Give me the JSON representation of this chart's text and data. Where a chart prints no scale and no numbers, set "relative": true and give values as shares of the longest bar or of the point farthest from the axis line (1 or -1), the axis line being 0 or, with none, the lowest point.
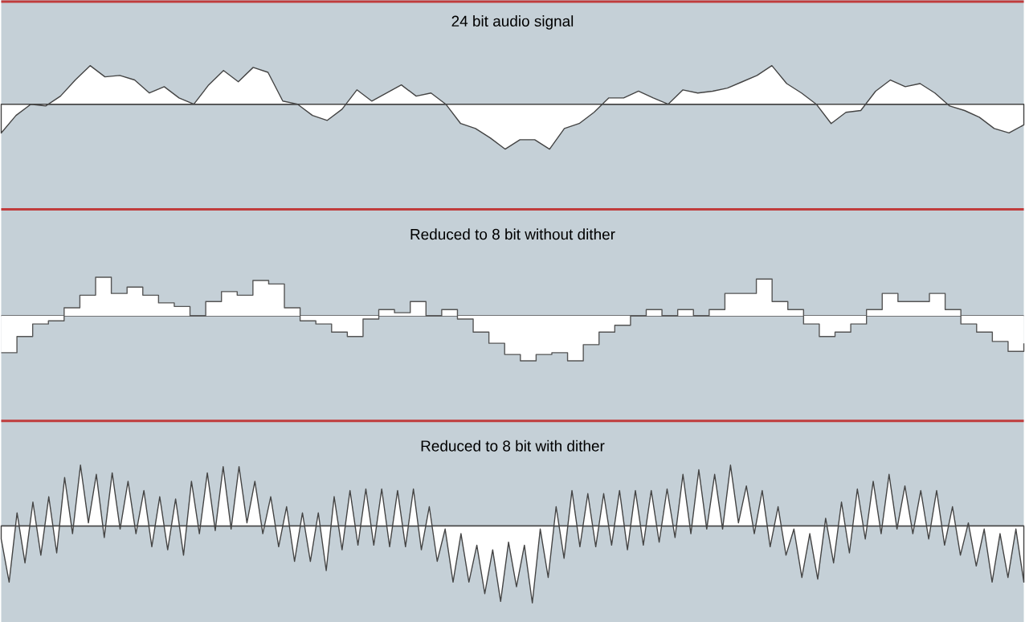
{
  "chart_data": [
    {
      "type": "area",
      "title": "24 bit audio signal",
      "relative": true,
      "color": "#ffffff",
      "categories": [
        null,
        null,
        null,
        null,
        null,
        null,
        null,
        null,
        null,
        null,
        null,
        null,
        null,
        null,
        null,
        null,
        null,
        null,
        null,
        null,
        null,
        null,
        null,
        null,
        null,
        null,
        null,
        null,
        null,
        null,
        null,
        null,
        null,
        null,
        null,
        null,
        null,
        null,
        null,
        null,
        null,
        null,
        null,
        null,
        null,
        null,
        null,
        null,
        null,
        null,
        null,
        null,
        null,
        null,
        null,
        null,
        null,
        null,
        null,
        null,
        null,
        null,
        null,
        null,
        null,
        null,
        null,
        null,
        null,
        null
      ],
      "values": [
        -0.64,
        -0.25,
        0,
        -0.04,
        0.18,
        0.54,
        0.86,
        0.61,
        0.64,
        0.54,
        0.25,
        0.39,
        0.14,
        0,
        0.43,
        0.75,
        0.5,
        0.82,
        0.71,
        0.07,
        0,
        -0.25,
        -0.36,
        -0.11,
        0.32,
        0.07,
        0.25,
        0.43,
        0.18,
        0.25,
        0,
        -0.43,
        -0.54,
        -0.75,
        -1,
        -0.79,
        -0.79,
        -1,
        -0.54,
        -0.43,
        -0.18,
        0.14,
        0.14,
        0.29,
        0.14,
        0,
        0.32,
        0.25,
        0.29,
        0.36,
        0.5,
        0.64,
        0.86,
        0.46,
        0.25,
        0,
        -0.43,
        -0.18,
        -0.14,
        0.29,
        0.54,
        0.39,
        0.46,
        0.25,
        -0.04,
        -0.14,
        -0.29,
        -0.54,
        -0.64,
        -0.46
      ]
    },
    {
      "type": "step",
      "title": "Reduced to 8 bit without dither",
      "relative": true,
      "color": "#555555",
      "categories": [
        null,
        null,
        null,
        null,
        null,
        null,
        null,
        null,
        null,
        null,
        null,
        null,
        null,
        null,
        null,
        null,
        null,
        null,
        null,
        null,
        null,
        null,
        null,
        null,
        null,
        null,
        null,
        null,
        null,
        null,
        null,
        null,
        null,
        null,
        null,
        null,
        null,
        null,
        null,
        null,
        null,
        null,
        null,
        null,
        null,
        null,
        null,
        null,
        null,
        null,
        null,
        null,
        null,
        null,
        null,
        null,
        null,
        null,
        null,
        null,
        null,
        null,
        null,
        null,
        null,
        null
      ],
      "values": [
        -0.82,
        -0.46,
        -0.18,
        -0.11,
        0.18,
        0.46,
        0.86,
        0.5,
        0.64,
        0.46,
        0.29,
        0.21,
        0,
        0.32,
        0.54,
        0.46,
        0.79,
        0.71,
        0.18,
        -0.11,
        -0.18,
        -0.36,
        -0.46,
        -0.07,
        0.14,
        0.07,
        0.32,
        0,
        0.14,
        -0.07,
        -0.36,
        -0.61,
        -0.86,
        -1,
        -0.86,
        -0.82,
        -1,
        -0.64,
        -0.36,
        -0.21,
        0,
        0.14,
        0,
        0.14,
        0,
        0.14,
        0.5,
        0.5,
        0.82,
        0.32,
        0.14,
        -0.18,
        -0.46,
        -0.36,
        -0.18,
        0.14,
        0.5,
        0.32,
        0.32,
        0.5,
        0.14,
        -0.18,
        -0.36,
        -0.57,
        -0.79,
        -0.61
      ]
    },
    {
      "type": "area",
      "title": "Reduced to 8 bit with dither",
      "relative": true,
      "color": "#ffffff",
      "categories": [
        null,
        null,
        null,
        null,
        null,
        null,
        null,
        null,
        null,
        null,
        null,
        null,
        null,
        null,
        null,
        null,
        null,
        null,
        null,
        null,
        null,
        null,
        null,
        null,
        null,
        null,
        null,
        null,
        null,
        null,
        null,
        null,
        null,
        null,
        null,
        null,
        null,
        null,
        null,
        null,
        null,
        null,
        null,
        null,
        null,
        null,
        null,
        null,
        null,
        null,
        null,
        null,
        null,
        null,
        null,
        null,
        null,
        null,
        null,
        null,
        null,
        null,
        null,
        null,
        null,
        null,
        null,
        null,
        null,
        null,
        null,
        null,
        null,
        null,
        null,
        null,
        null,
        null,
        null,
        null,
        null,
        null,
        null,
        null,
        null,
        null,
        null,
        null,
        null,
        null,
        null,
        null,
        null,
        null,
        null,
        null,
        null,
        null,
        null,
        null,
        null,
        null,
        null,
        null,
        null,
        null,
        null,
        null,
        null,
        null,
        null,
        null,
        null,
        null,
        null,
        null,
        null,
        null,
        null,
        null,
        null,
        null,
        null,
        null,
        null,
        null,
        null,
        null,
        null,
        null
      ],
      "values": [
        -0.17,
        -0.73,
        0.17,
        -0.48,
        0.31,
        -0.38,
        0.38,
        -0.35,
        0.63,
        -0.1,
        0.79,
        0.04,
        0.67,
        -0.15,
        0.69,
        -0.04,
        0.58,
        -0.1,
        0.46,
        -0.27,
        0.38,
        -0.31,
        0.35,
        -0.38,
        0.58,
        -0.1,
        0.69,
        -0.06,
        0.77,
        -0.04,
        0.77,
        0.04,
        0.58,
        -0.1,
        0.38,
        -0.27,
        0.25,
        -0.46,
        0.17,
        -0.46,
        0.17,
        -0.58,
        0.38,
        -0.31,
        0.46,
        -0.25,
        0.48,
        -0.25,
        0.48,
        -0.27,
        0.46,
        -0.27,
        0.48,
        -0.31,
        0.25,
        -0.46,
        -0.04,
        -0.73,
        -0.1,
        -0.73,
        -0.25,
        -0.88,
        -0.31,
        -0.98,
        -0.21,
        -0.79,
        -0.25,
        -1,
        -0.04,
        -0.67,
        0.25,
        -0.42,
        0.46,
        -0.27,
        0.42,
        -0.27,
        0.42,
        -0.25,
        0.46,
        -0.31,
        0.46,
        -0.25,
        0.46,
        -0.21,
        0.48,
        -0.15,
        0.67,
        -0.1,
        0.73,
        -0.04,
        0.67,
        -0.04,
        0.79,
        0.04,
        0.52,
        -0.1,
        0.46,
        -0.27,
        0.25,
        -0.38,
        -0.04,
        -0.67,
        -0.1,
        -0.69,
        0.1,
        -0.48,
        0.31,
        -0.35,
        0.48,
        -0.17,
        0.58,
        -0.1,
        0.67,
        -0.04,
        0.52,
        -0.1,
        0.46,
        -0.17,
        0.46,
        -0.25,
        0.25,
        -0.38,
        0.04,
        -0.52,
        -0.04,
        -0.73,
        -0.1,
        -0.67,
        -0.04,
        -0.73
      ]
    }
  ]
}
